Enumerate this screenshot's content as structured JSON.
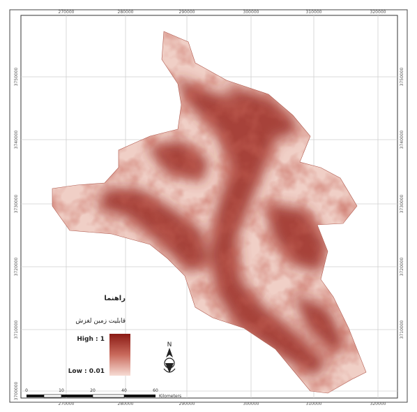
{
  "map": {
    "x_ticks": [
      "270000",
      "280000",
      "290000",
      "300000",
      "310000",
      "320000"
    ],
    "y_ticks": [
      "3750000",
      "3740000",
      "3730000",
      "3720000",
      "3710000",
      "3700000"
    ],
    "graticule": true
  },
  "legend": {
    "title": "راهنما",
    "layer_name": "قابلیت زمین لغزش",
    "high_label": "High : 1",
    "low_label": "Low : 0.01",
    "ramp_colors": [
      "#8a1a14",
      "#c96a5c",
      "#f7dcd4"
    ]
  },
  "scale_bar": {
    "labels": [
      "0",
      "10",
      "20",
      "40",
      "60"
    ],
    "unit": "Kilometers"
  },
  "north_arrow": {
    "label": "N",
    "icon": "north-arrow-icon"
  },
  "colors": {
    "frame": "#333333",
    "graticule": "#c8c8c8",
    "low": "#f3d3cb",
    "high": "#8c1d16"
  }
}
